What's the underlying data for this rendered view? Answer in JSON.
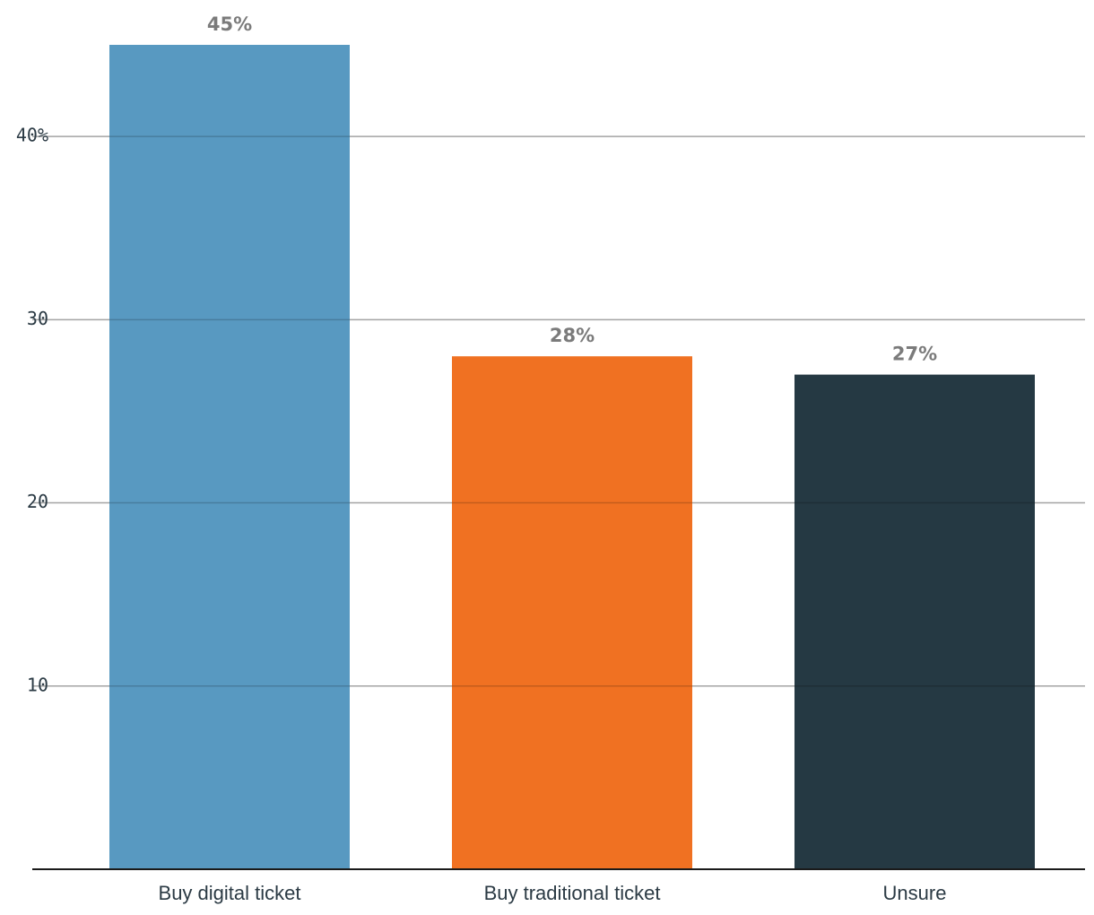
{
  "chart_data": {
    "type": "bar",
    "title": "",
    "xlabel": "",
    "ylabel": "",
    "categories": [
      "Buy digital ticket",
      "Buy traditional ticket",
      "Unsure"
    ],
    "values": [
      45,
      28,
      27
    ],
    "value_labels": [
      "45%",
      "28%",
      "27%"
    ],
    "colors": [
      "#5899c1",
      "#f07122",
      "#253943"
    ],
    "ylim": [
      0,
      45
    ],
    "yticks": [
      10,
      20,
      30,
      40
    ],
    "ytick_labels": [
      "10",
      "20",
      "30",
      "40%"
    ],
    "grid": true,
    "legend": "none"
  }
}
